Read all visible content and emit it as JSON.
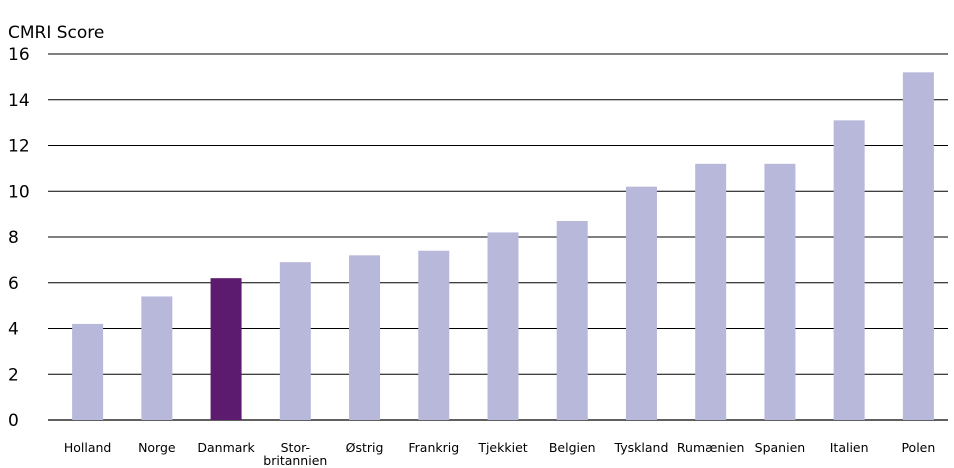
{
  "chart_data": {
    "type": "bar",
    "title": "",
    "ylabel": "CMRI Score",
    "xlabel": "",
    "ylim": [
      0,
      16
    ],
    "yticks": [
      "0",
      "2",
      "4",
      "6",
      "8",
      "10",
      "12",
      "14",
      "16"
    ],
    "grid": "horizontal",
    "categories": [
      "Holland",
      "Norge",
      "Danmark",
      "Stor-britannien",
      "Østrig",
      "Frankrig",
      "Tjekkiet",
      "Belgien",
      "Tyskland",
      "Rumænien",
      "Spanien",
      "Italien",
      "Polen"
    ],
    "category_lines": [
      [
        "Holland"
      ],
      [
        "Norge"
      ],
      [
        "Danmark"
      ],
      [
        "Stor-",
        "britannien"
      ],
      [
        "Østrig"
      ],
      [
        "Frankrig"
      ],
      [
        "Tjekkiet"
      ],
      [
        "Belgien"
      ],
      [
        "Tyskland"
      ],
      [
        "Rumænien"
      ],
      [
        "Spanien"
      ],
      [
        "Italien"
      ],
      [
        "Polen"
      ]
    ],
    "values": [
      4.2,
      5.4,
      6.2,
      6.9,
      7.2,
      7.4,
      8.2,
      8.7,
      10.2,
      11.2,
      11.2,
      13.1,
      15.2
    ],
    "highlight_category": "Danmark",
    "colors": {
      "bar": "#b8b8da",
      "highlight": "#5c1b6e",
      "grid": "#000000"
    }
  }
}
